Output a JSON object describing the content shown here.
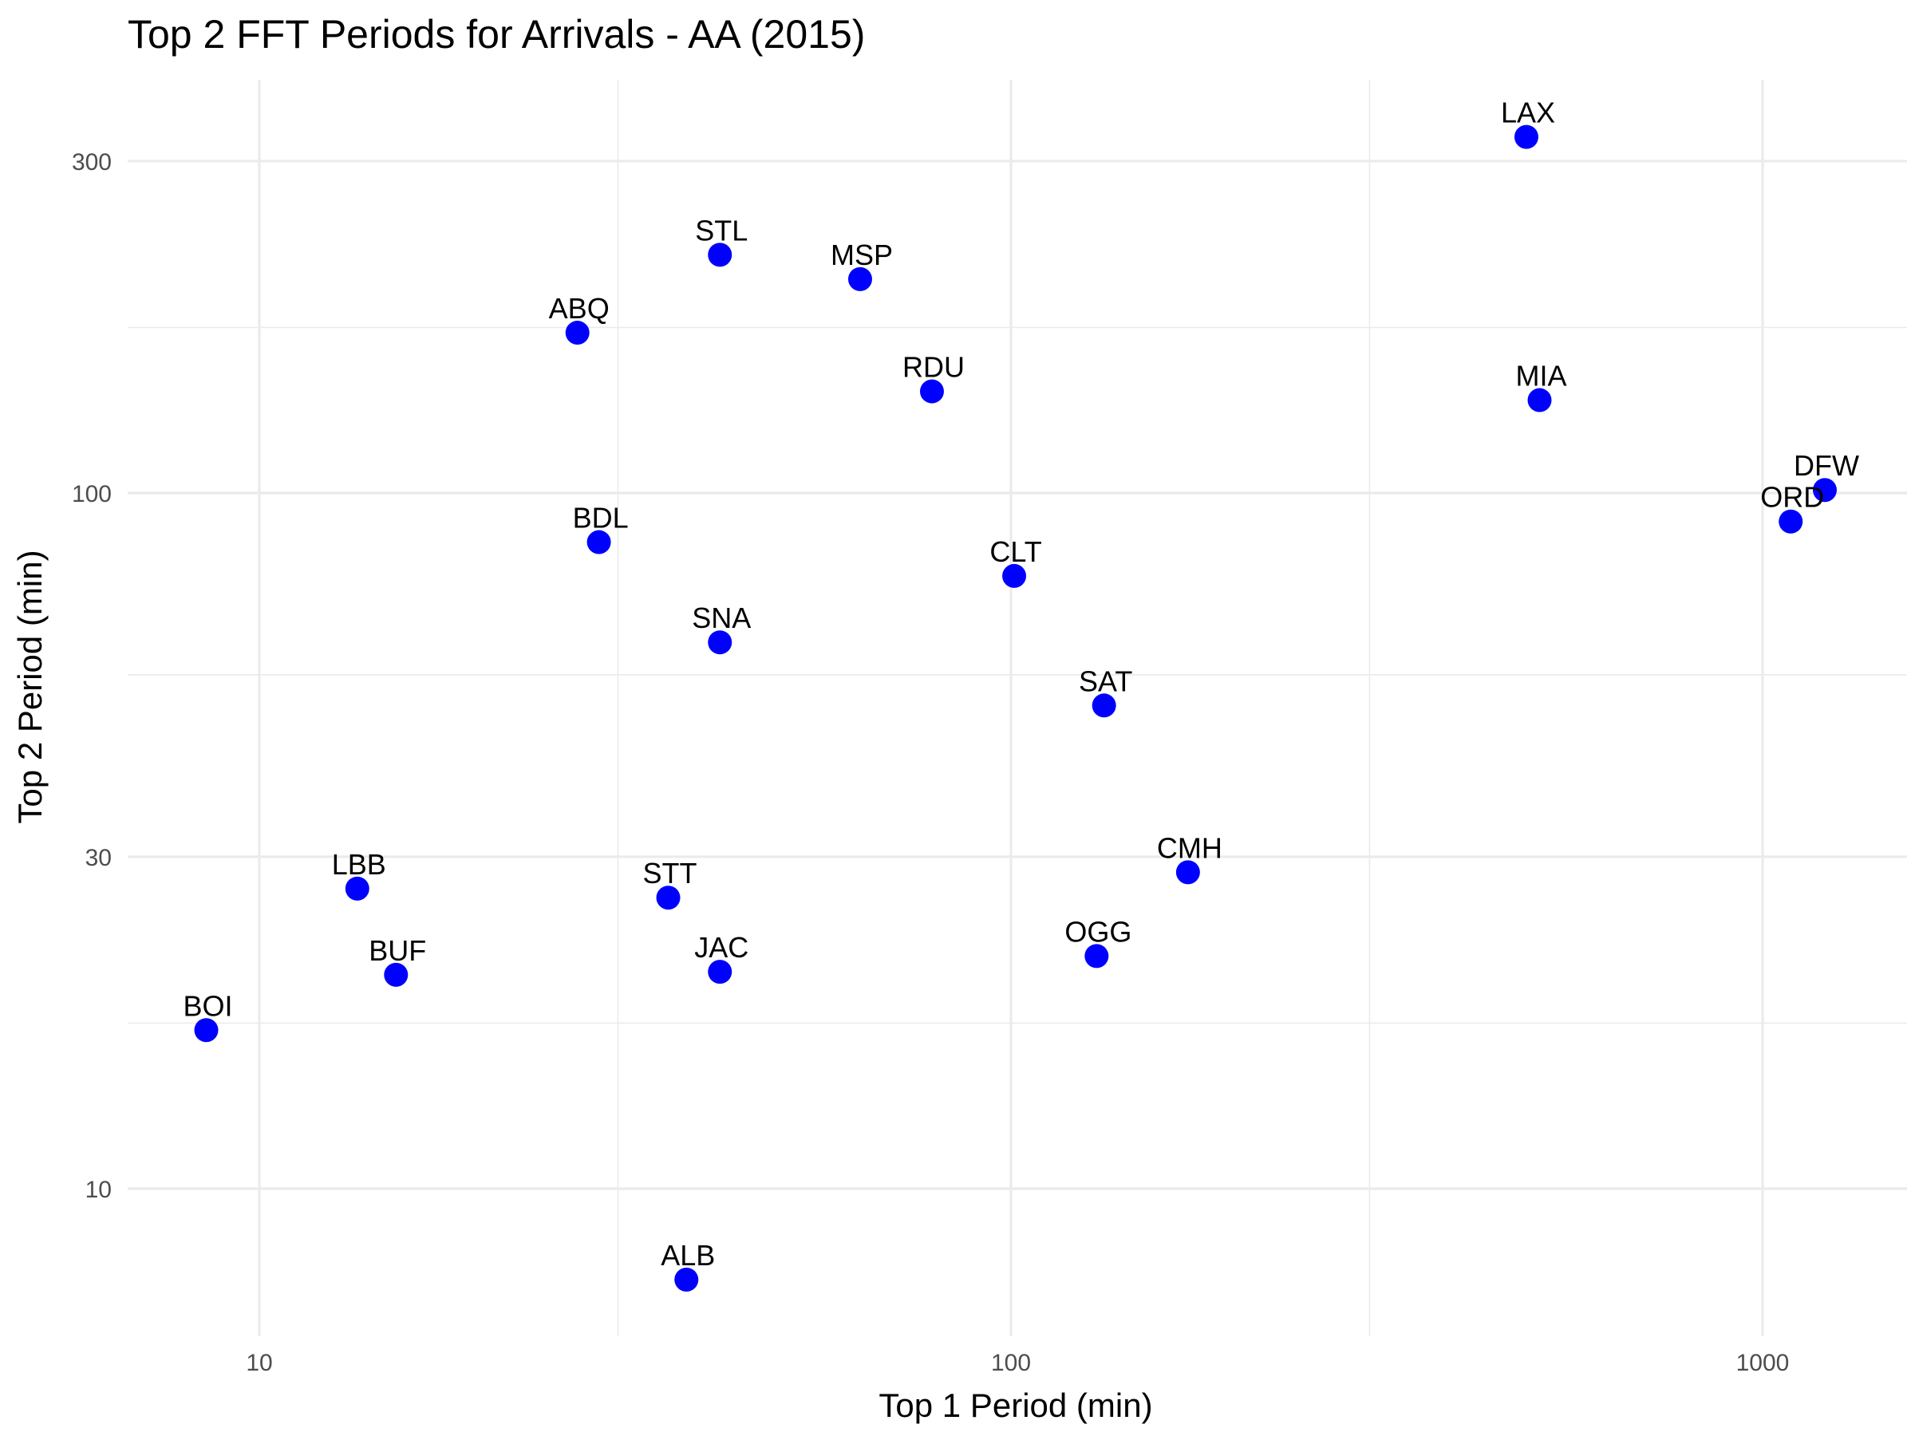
{
  "chart_data": {
    "type": "scatter",
    "title": "Top 2 FFT Periods for Arrivals - AA (2015)",
    "xlabel": "Top 1 Period (min)",
    "ylabel": "Top 2 Period (min)",
    "x_scale": "log10",
    "y_scale": "log10",
    "xlim": [
      7.2,
      1480
    ],
    "ylim": [
      7.2,
      370
    ],
    "x_major_ticks": [
      10,
      100,
      1000
    ],
    "x_minor_ticks": [
      30,
      300
    ],
    "x_tick_labels": [
      "10",
      "100",
      "1000"
    ],
    "y_major_ticks": [
      10,
      30,
      100,
      300
    ],
    "y_minor_ticks": [
      17.3,
      54.8,
      173
    ],
    "y_tick_labels": [
      "10",
      "30",
      "100",
      "300"
    ],
    "grid": true,
    "marker_color": "#0000ff",
    "points": [
      {
        "label": "LAX",
        "x": 485,
        "y": 325
      },
      {
        "label": "STL",
        "x": 41,
        "y": 220
      },
      {
        "label": "MSP",
        "x": 63,
        "y": 203
      },
      {
        "label": "ABQ",
        "x": 26.5,
        "y": 170
      },
      {
        "label": "RDU",
        "x": 78.5,
        "y": 140
      },
      {
        "label": "MIA",
        "x": 505,
        "y": 136
      },
      {
        "label": "DFW",
        "x": 1210,
        "y": 101
      },
      {
        "label": "ORD",
        "x": 1090,
        "y": 91
      },
      {
        "label": "BDL",
        "x": 28.3,
        "y": 85
      },
      {
        "label": "CLT",
        "x": 101,
        "y": 76
      },
      {
        "label": "SNA",
        "x": 41,
        "y": 61
      },
      {
        "label": "SAT",
        "x": 133,
        "y": 49.5
      },
      {
        "label": "CMH",
        "x": 172,
        "y": 28.5
      },
      {
        "label": "LBB",
        "x": 13.5,
        "y": 27
      },
      {
        "label": "STT",
        "x": 35,
        "y": 26.2
      },
      {
        "label": "OGG",
        "x": 130,
        "y": 21.6
      },
      {
        "label": "BUF",
        "x": 15.2,
        "y": 20.3
      },
      {
        "label": "JAC",
        "x": 41,
        "y": 20.5
      },
      {
        "label": "BOI",
        "x": 8.5,
        "y": 16.9
      },
      {
        "label": "ALB",
        "x": 37,
        "y": 7.4
      }
    ]
  }
}
